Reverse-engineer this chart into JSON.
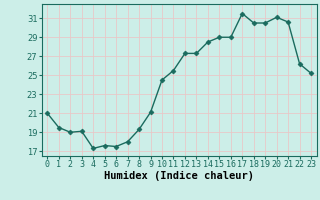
{
  "xlabel": "Humidex (Indice chaleur)",
  "x": [
    0,
    1,
    2,
    3,
    4,
    5,
    6,
    7,
    8,
    9,
    10,
    11,
    12,
    13,
    14,
    15,
    16,
    17,
    18,
    19,
    20,
    21,
    22,
    23
  ],
  "y": [
    21.0,
    19.5,
    19.0,
    19.1,
    17.3,
    17.6,
    17.5,
    18.0,
    19.3,
    21.1,
    24.5,
    25.5,
    27.3,
    27.3,
    28.5,
    29.0,
    29.0,
    31.5,
    30.5,
    30.5,
    31.1,
    30.6,
    26.2,
    25.2
  ],
  "line_color": "#1a6b5e",
  "marker": "D",
  "marker_size": 2.5,
  "bg_color": "#cceee8",
  "grid_color": "#e8c8c8",
  "axis_color": "#1a6b5e",
  "ylim": [
    16.5,
    32.5
  ],
  "yticks": [
    17,
    19,
    21,
    23,
    25,
    27,
    29,
    31
  ],
  "xlim": [
    -0.5,
    23.5
  ],
  "tick_fontsize": 6,
  "xlabel_fontsize": 7.5,
  "linewidth": 1.0
}
